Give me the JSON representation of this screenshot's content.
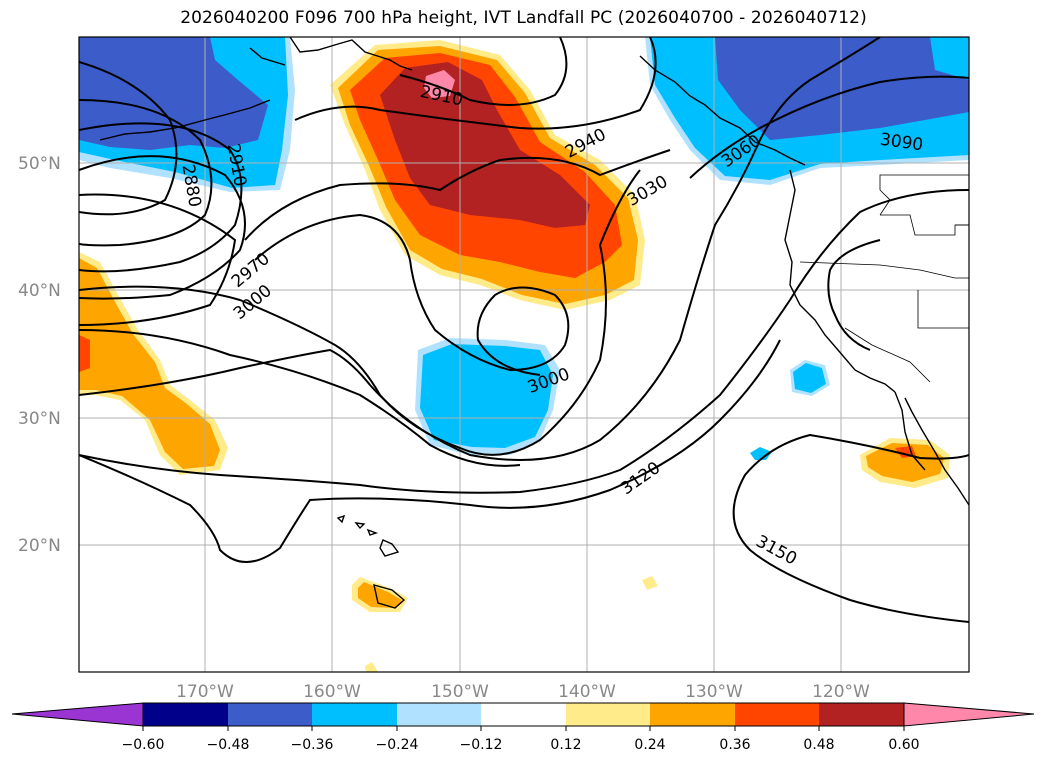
{
  "title": "2026040200 F096 700 hPa height, IVT Landfall PC (2026040700 - 2026040712)",
  "map": {
    "lat_labels": [
      "50°N",
      "40°N",
      "30°N",
      "20°N"
    ],
    "lon_labels": [
      "170°W",
      "160°W",
      "150°W",
      "140°W",
      "130°W",
      "120°W"
    ],
    "contour_labels": [
      "2880",
      "2910",
      "2910",
      "2940",
      "2970",
      "3000",
      "3000",
      "3030",
      "3060",
      "3090",
      "3120",
      "3150"
    ]
  },
  "colorbar": {
    "tick_labels": [
      "−0.60",
      "−0.48",
      "−0.36",
      "−0.24",
      "−0.12",
      "0.12",
      "0.24",
      "0.36",
      "0.48",
      "0.60"
    ],
    "colors": {
      "under": "#9a35d3",
      "bins": [
        "#9a35d3",
        "#00008b",
        "#3b5cc9",
        "#00bfff",
        "#b0e2ff",
        "#ffffff",
        "#ffeb8a",
        "#ffa500",
        "#ff4500",
        "#b22222",
        "#ff88aa"
      ],
      "over": "#ff88aa"
    }
  },
  "colors": {
    "deep_red": "#b22222",
    "red_orange": "#ff4500",
    "orange": "#ffa500",
    "pale_yellow": "#ffeb8a",
    "pink": "#ff88aa",
    "royal_blue": "#3b5cc9",
    "sky_blue": "#00bfff",
    "light_blue": "#b0e2ff",
    "grid": "#b0b0b0",
    "label_gray": "#888888"
  }
}
